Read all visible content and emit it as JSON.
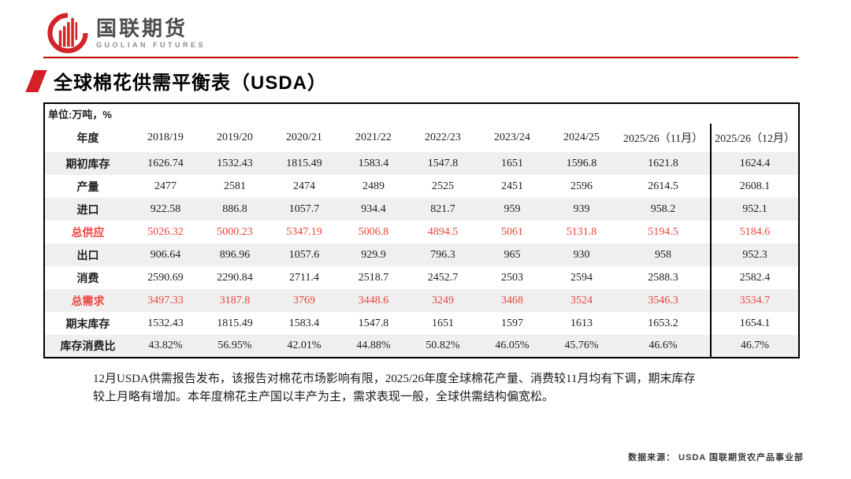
{
  "logo": {
    "name_cn": "国联期货",
    "name_en": "GUOLIAN FUTURES"
  },
  "page_title": "全球棉花供需平衡表（USDA）",
  "table": {
    "unit_label": "单位:万吨，%",
    "header": [
      "年度",
      "2018/19",
      "2019/20",
      "2020/21",
      "2021/22",
      "2022/23",
      "2023/24",
      "2024/25",
      "2025/26（11月）",
      "2025/26（12月）"
    ],
    "rows": [
      {
        "label": "期初库存",
        "values": [
          "1626.74",
          "1532.43",
          "1815.49",
          "1583.4",
          "1547.8",
          "1651",
          "1596.8",
          "1621.8",
          "1624.4"
        ],
        "highlight": false
      },
      {
        "label": "产量",
        "values": [
          "2477",
          "2581",
          "2474",
          "2489",
          "2525",
          "2451",
          "2596",
          "2614.5",
          "2608.1"
        ],
        "highlight": false
      },
      {
        "label": "进口",
        "values": [
          "922.58",
          "886.8",
          "1057.7",
          "934.4",
          "821.7",
          "959",
          "939",
          "958.2",
          "952.1"
        ],
        "highlight": false
      },
      {
        "label": "总供应",
        "values": [
          "5026.32",
          "5000.23",
          "5347.19",
          "5006.8",
          "4894.5",
          "5061",
          "5131.8",
          "5194.5",
          "5184.6"
        ],
        "highlight": true
      },
      {
        "label": "出口",
        "values": [
          "906.64",
          "896.96",
          "1057.6",
          "929.9",
          "796.3",
          "965",
          "930",
          "958",
          "952.3"
        ],
        "highlight": false
      },
      {
        "label": "消费",
        "values": [
          "2590.69",
          "2290.84",
          "2711.4",
          "2518.7",
          "2452.7",
          "2503",
          "2594",
          "2588.3",
          "2582.4"
        ],
        "highlight": false
      },
      {
        "label": "总需求",
        "values": [
          "3497.33",
          "3187.8",
          "3769",
          "3448.6",
          "3249",
          "3468",
          "3524",
          "3546.3",
          "3534.7"
        ],
        "highlight": true
      },
      {
        "label": "期末库存",
        "values": [
          "1532.43",
          "1815.49",
          "1583.4",
          "1547.8",
          "1651",
          "1597",
          "1613",
          "1653.2",
          "1654.1"
        ],
        "highlight": false
      },
      {
        "label": "库存消费比",
        "values": [
          "43.82%",
          "56.95%",
          "42.01%",
          "44.88%",
          "50.82%",
          "46.05%",
          "45.76%",
          "46.6%",
          "46.7%"
        ],
        "highlight": false
      }
    ]
  },
  "footnote_lines": [
    "12月USDA供需报告发布，该报告对棉花市场影响有限，2025/26年度全球棉花产量、消费较11月均有下调，期末库存",
    "较上月略有增加。本年度棉花主产国以丰产为主，需求表现一般，全球供需结构偏宽松。"
  ],
  "source_label": "数据来源： USDA 国联期货农产品事业部",
  "colors": {
    "accent_red": "#C00000",
    "slash_red": "#D31F26",
    "table_highlight_red": "#EE443C",
    "row_shade": "#EFEFEF",
    "logo_red": "#D2232A"
  }
}
